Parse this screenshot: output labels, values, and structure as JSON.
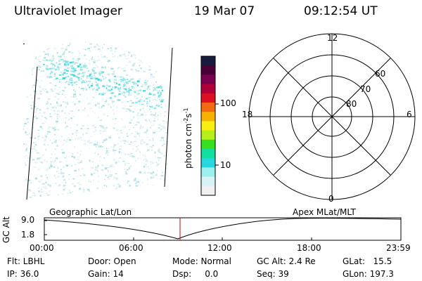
{
  "header": {
    "instrument": "Ultraviolet Imager",
    "date": "19 Mar 07",
    "time": "09:12:54 UT"
  },
  "colorbar": {
    "label": "photon cm",
    "label_exp1": "-2",
    "label_mid": "s",
    "label_exp2": "-1",
    "ticks": [
      "100",
      "10"
    ],
    "colors": [
      "#1a1a40",
      "#4b0035",
      "#7a004f",
      "#b0003a",
      "#dd1022",
      "#f26a10",
      "#f5b000",
      "#f8ee10",
      "#b6ef1a",
      "#36e020",
      "#10e0a0",
      "#28d8e0",
      "#9ef0ee",
      "#d8f3f5",
      "#f0f0f0"
    ]
  },
  "polar_plot": {
    "mlt_labels": [
      "12",
      "18",
      "6",
      "0"
    ],
    "lat_labels": [
      "60",
      "70",
      "80"
    ]
  },
  "timeline": {
    "ylabel": "GC Alt",
    "y_ticks": [
      "9.0",
      "1.8"
    ],
    "left_caption": "Geographic Lat/Lon",
    "right_caption": "Apex  MLat/MLT",
    "x_ticks": [
      "00:00",
      "06:00",
      "12:00",
      "18:00",
      "23:59"
    ]
  },
  "footer": {
    "filter": "Flt: LBHL",
    "ip": "IP: 36.0",
    "door": "Door: Open",
    "gain": "Gain: 14",
    "mode": "Mode: Normal",
    "dsp": "Dsp:     0.0",
    "gcalt": "GC Alt: 2.4 Re",
    "seq": "Seq: 39",
    "glat": "GLat:   15.5",
    "glon": "GLon: 197.3"
  }
}
